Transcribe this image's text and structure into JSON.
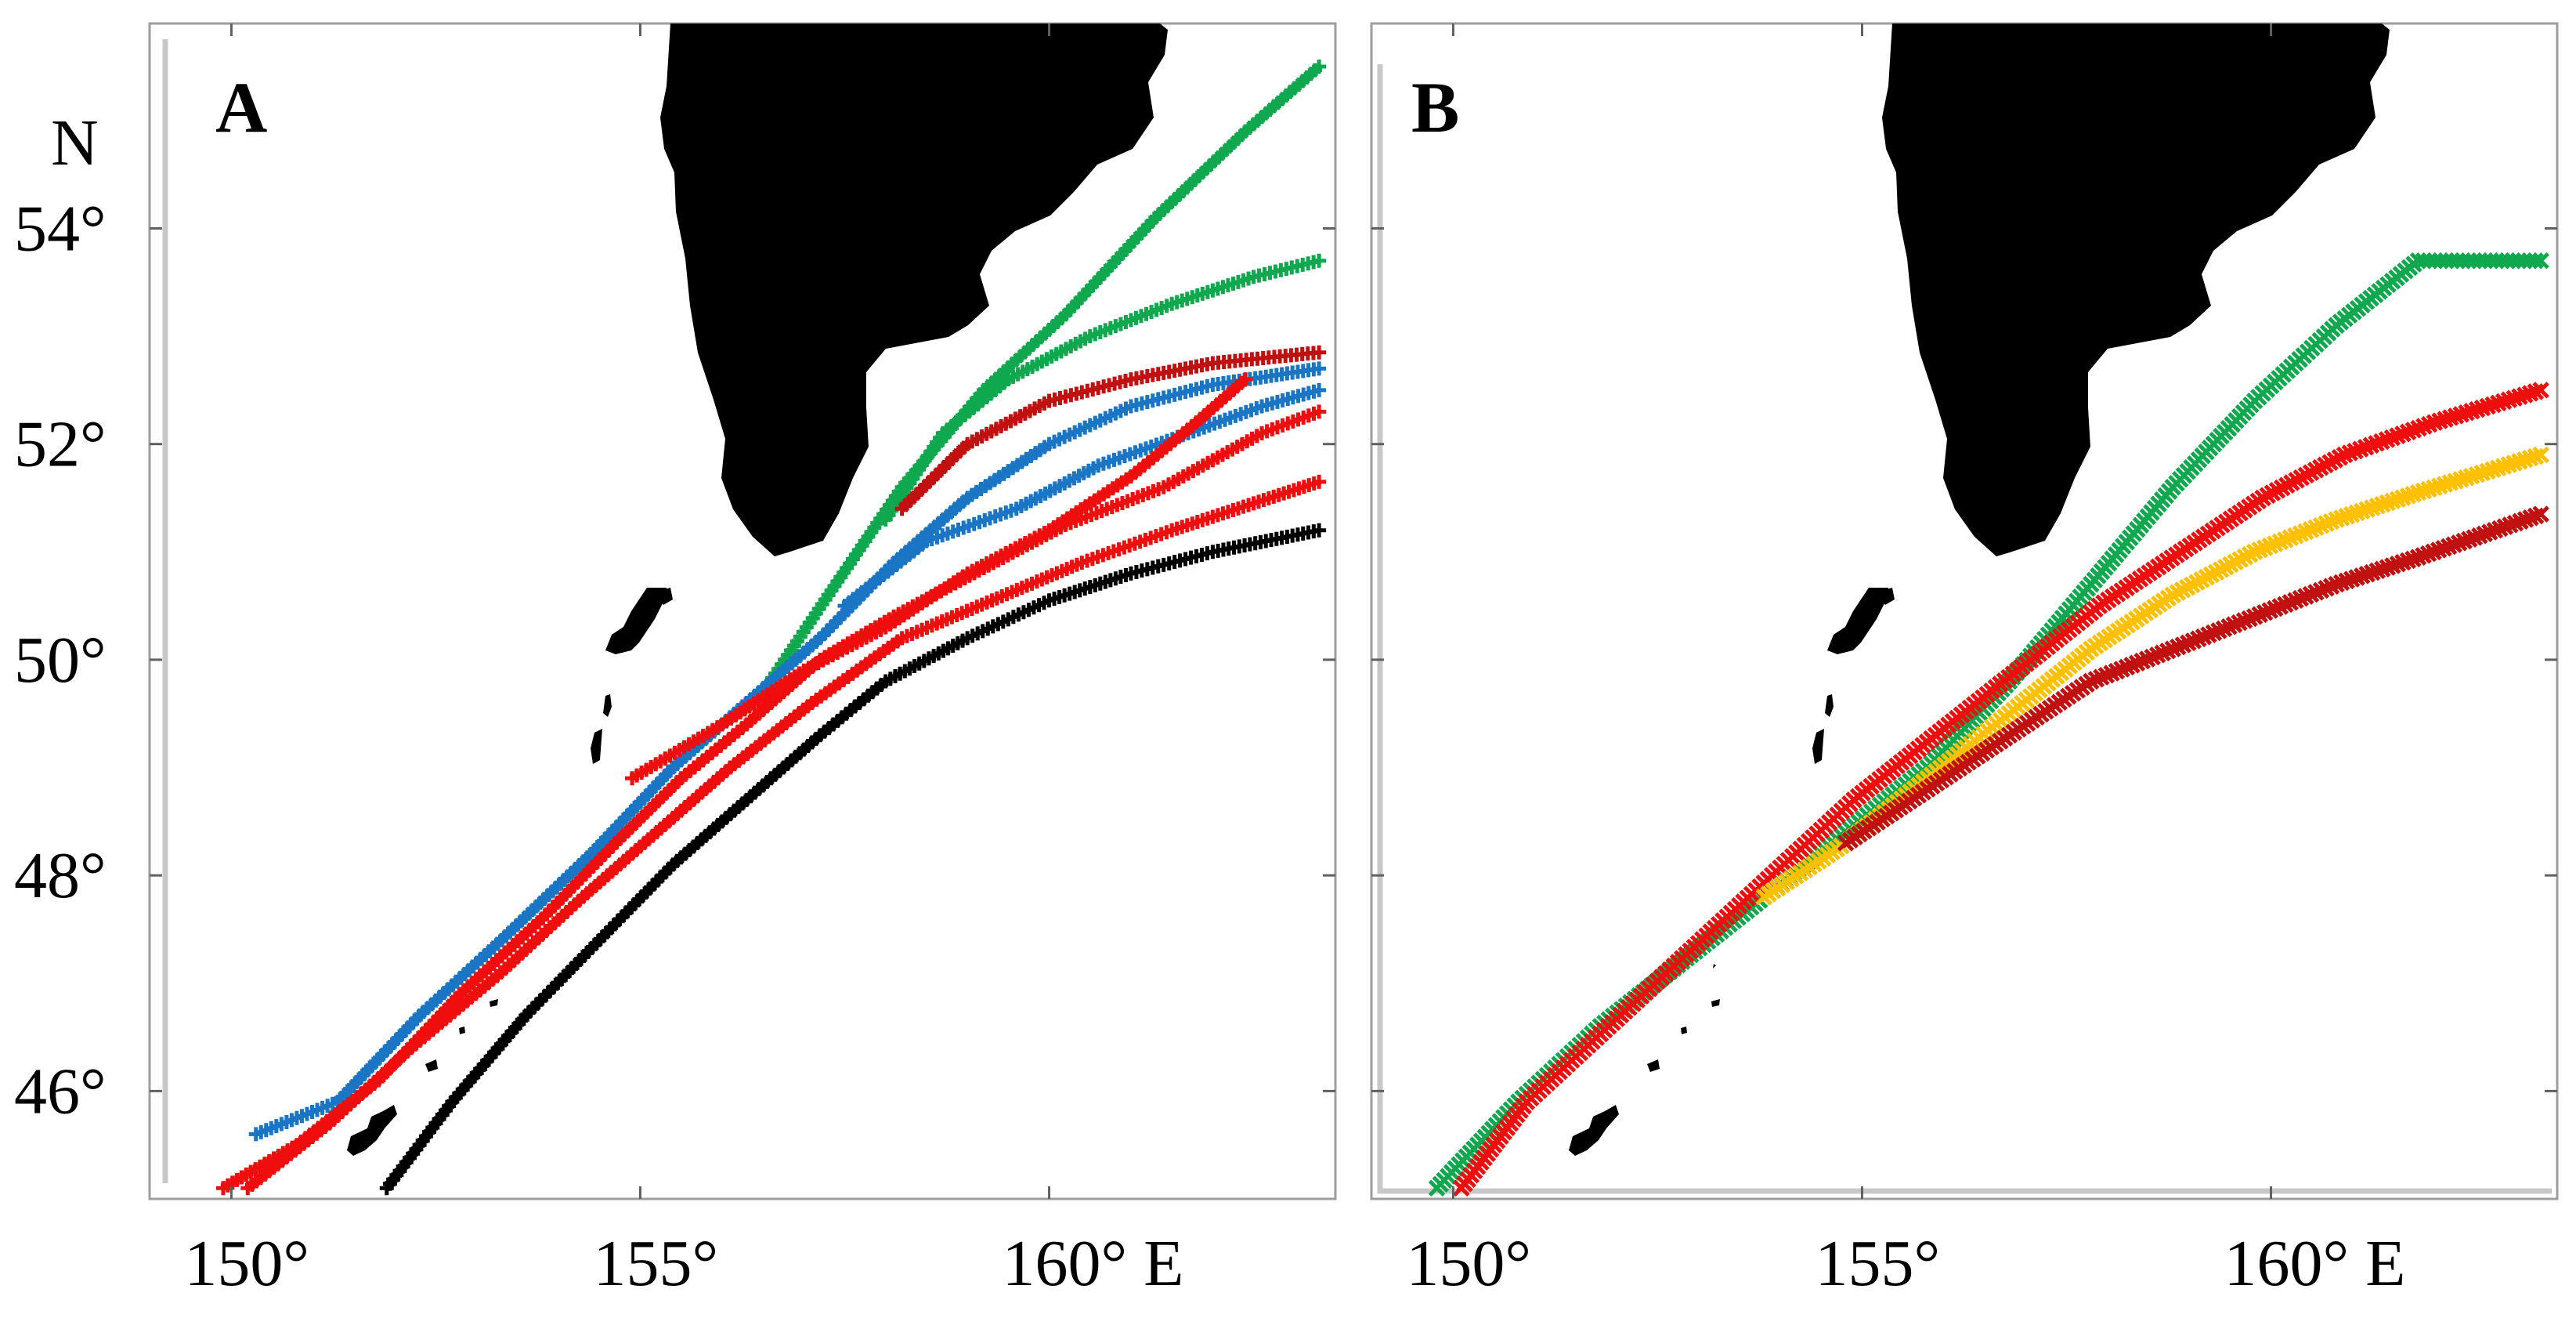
{
  "chart_data": [
    {
      "type": "scatter",
      "panel": "A",
      "title": "A",
      "xlabel": "",
      "ylabel": "",
      "xlim": [
        149.0,
        163.5
      ],
      "ylim": [
        45.0,
        55.9
      ],
      "x_ticks": [
        150,
        155,
        160
      ],
      "x_tick_labels": [
        "150°",
        "155°",
        "160° E"
      ],
      "y_ticks": [
        46,
        48,
        50,
        52,
        54
      ],
      "y_tick_labels": [
        "46°",
        "48°",
        "50°",
        "52°",
        "54°"
      ],
      "y_axis_hemisphere": "N",
      "marker": "+",
      "series": [
        {
          "name": "green-1",
          "color": "#10a84e",
          "points": [
            [
              156.5,
              49.7
            ],
            [
              157.3,
              50.6
            ],
            [
              158.2,
              51.6
            ],
            [
              159.2,
              52.5
            ],
            [
              160.2,
              53.2
            ],
            [
              161.3,
              54.1
            ],
            [
              162.4,
              54.9
            ],
            [
              163.3,
              55.5
            ]
          ]
        },
        {
          "name": "green-2",
          "color": "#10a84e",
          "points": [
            [
              158.0,
              51.3
            ],
            [
              158.7,
              52.1
            ],
            [
              159.5,
              52.6
            ],
            [
              160.5,
              53.0
            ],
            [
              161.5,
              53.3
            ],
            [
              162.5,
              53.55
            ],
            [
              163.3,
              53.7
            ]
          ]
        },
        {
          "name": "red-1",
          "color": "#c01010",
          "points": [
            [
              158.2,
              51.4
            ],
            [
              159.0,
              52.0
            ],
            [
              160.0,
              52.4
            ],
            [
              161.0,
              52.6
            ],
            [
              162.0,
              52.75
            ],
            [
              163.3,
              52.85
            ]
          ]
        },
        {
          "name": "blue-1",
          "color": "#1a76c4",
          "points": [
            [
              150.3,
              45.6
            ],
            [
              151.3,
              45.9
            ],
            [
              152.3,
              46.7
            ],
            [
              153.3,
              47.4
            ],
            [
              154.4,
              48.2
            ],
            [
              155.4,
              49.0
            ],
            [
              156.3,
              49.6
            ],
            [
              157.2,
              50.2
            ],
            [
              158.1,
              50.9
            ],
            [
              159.0,
              51.5
            ],
            [
              160.0,
              52.0
            ],
            [
              161.0,
              52.35
            ],
            [
              162.0,
              52.55
            ],
            [
              163.3,
              52.7
            ]
          ]
        },
        {
          "name": "blue-2",
          "color": "#1a76c4",
          "points": [
            [
              157.5,
              50.5
            ],
            [
              158.5,
              51.1
            ],
            [
              159.6,
              51.4
            ],
            [
              160.6,
              51.8
            ],
            [
              161.7,
              52.1
            ],
            [
              162.6,
              52.35
            ],
            [
              163.3,
              52.5
            ]
          ]
        },
        {
          "name": "red-2",
          "color": "#ef0d0d",
          "points": [
            [
              149.9,
              45.1
            ],
            [
              150.8,
              45.5
            ],
            [
              151.8,
              46.1
            ],
            [
              152.8,
              46.9
            ],
            [
              153.8,
              47.6
            ],
            [
              154.7,
              48.3
            ],
            [
              155.5,
              48.9
            ],
            [
              156.3,
              49.4
            ],
            [
              157.2,
              50.0
            ],
            [
              158.1,
              50.4
            ],
            [
              159.2,
              50.85
            ],
            [
              160.2,
              51.25
            ],
            [
              161.4,
              51.6
            ],
            [
              162.6,
              52.1
            ],
            [
              163.3,
              52.3
            ]
          ]
        },
        {
          "name": "red-3",
          "color": "#ef0d0d",
          "points": [
            [
              150.2,
              45.1
            ],
            [
              151.2,
              45.7
            ],
            [
              152.2,
              46.4
            ],
            [
              153.3,
              47.1
            ],
            [
              154.3,
              47.8
            ],
            [
              155.2,
              48.4
            ],
            [
              156.1,
              49.0
            ],
            [
              157.1,
              49.6
            ],
            [
              158.2,
              50.2
            ],
            [
              159.3,
              50.55
            ],
            [
              160.4,
              50.9
            ],
            [
              161.5,
              51.2
            ],
            [
              162.5,
              51.45
            ],
            [
              163.3,
              51.65
            ]
          ]
        },
        {
          "name": "red-4",
          "color": "#ef0d0d",
          "points": [
            [
              154.9,
              48.9
            ],
            [
              156.0,
              49.4
            ],
            [
              157.0,
              49.9
            ],
            [
              158.0,
              50.3
            ],
            [
              159.0,
              50.8
            ],
            [
              160.0,
              51.2
            ],
            [
              161.0,
              51.7
            ],
            [
              161.8,
              52.2
            ],
            [
              162.4,
              52.6
            ]
          ]
        },
        {
          "name": "black-1",
          "color": "#000000",
          "points": [
            [
              151.9,
              45.1
            ],
            [
              152.7,
              45.9
            ],
            [
              153.6,
              46.7
            ],
            [
              154.5,
              47.4
            ],
            [
              155.4,
              48.1
            ],
            [
              156.3,
              48.7
            ],
            [
              157.2,
              49.3
            ],
            [
              158.0,
              49.8
            ],
            [
              159.0,
              50.2
            ],
            [
              160.0,
              50.55
            ],
            [
              161.0,
              50.8
            ],
            [
              162.0,
              51.0
            ],
            [
              163.3,
              51.2
            ]
          ]
        }
      ]
    },
    {
      "type": "scatter",
      "panel": "B",
      "title": "B",
      "xlabel": "",
      "ylabel": "",
      "xlim": [
        149.0,
        163.5
      ],
      "ylim": [
        45.0,
        55.9
      ],
      "x_ticks": [
        150,
        155,
        160
      ],
      "x_tick_labels": [
        "150°",
        "155°",
        "160° E"
      ],
      "y_ticks": [
        46,
        48,
        50,
        52,
        54
      ],
      "marker": "x",
      "series": [
        {
          "name": "green-B",
          "color": "#10a84e",
          "points": [
            [
              149.8,
              45.1
            ],
            [
              150.8,
              45.9
            ],
            [
              151.8,
              46.6
            ],
            [
              152.8,
              47.2
            ],
            [
              153.8,
              47.8
            ],
            [
              154.8,
              48.4
            ],
            [
              155.8,
              49.0
            ],
            [
              156.8,
              49.8
            ],
            [
              157.8,
              50.7
            ],
            [
              158.8,
              51.6
            ],
            [
              159.8,
              52.4
            ],
            [
              160.8,
              53.1
            ],
            [
              161.8,
              53.7
            ],
            [
              163.3,
              53.7
            ]
          ]
        },
        {
          "name": "red-B",
          "color": "#ef0d0d",
          "points": [
            [
              150.1,
              45.1
            ],
            [
              150.9,
              45.9
            ],
            [
              151.9,
              46.6
            ],
            [
              152.9,
              47.3
            ],
            [
              153.9,
              48.0
            ],
            [
              154.9,
              48.7
            ],
            [
              155.9,
              49.3
            ],
            [
              156.9,
              49.9
            ],
            [
              157.9,
              50.5
            ],
            [
              158.9,
              51.0
            ],
            [
              159.9,
              51.5
            ],
            [
              160.9,
              51.9
            ],
            [
              162.0,
              52.2
            ],
            [
              163.3,
              52.5
            ]
          ]
        },
        {
          "name": "yellow-B",
          "color": "#ffc000",
          "points": [
            [
              153.8,
              47.8
            ],
            [
              154.8,
              48.3
            ],
            [
              155.8,
              48.9
            ],
            [
              156.8,
              49.5
            ],
            [
              157.8,
              50.1
            ],
            [
              158.8,
              50.6
            ],
            [
              159.8,
              51.0
            ],
            [
              160.8,
              51.3
            ],
            [
              161.8,
              51.55
            ],
            [
              163.3,
              51.9
            ]
          ]
        },
        {
          "name": "darkred-B",
          "color": "#c01010",
          "points": [
            [
              154.8,
              48.3
            ],
            [
              155.8,
              48.8
            ],
            [
              156.8,
              49.3
            ],
            [
              157.8,
              49.8
            ],
            [
              158.8,
              50.1
            ],
            [
              159.8,
              50.4
            ],
            [
              160.8,
              50.7
            ],
            [
              161.8,
              50.95
            ],
            [
              163.3,
              51.35
            ]
          ]
        }
      ]
    }
  ],
  "figure": {
    "panel_labels": [
      "A",
      "B"
    ],
    "hemisphere_label": "N"
  }
}
